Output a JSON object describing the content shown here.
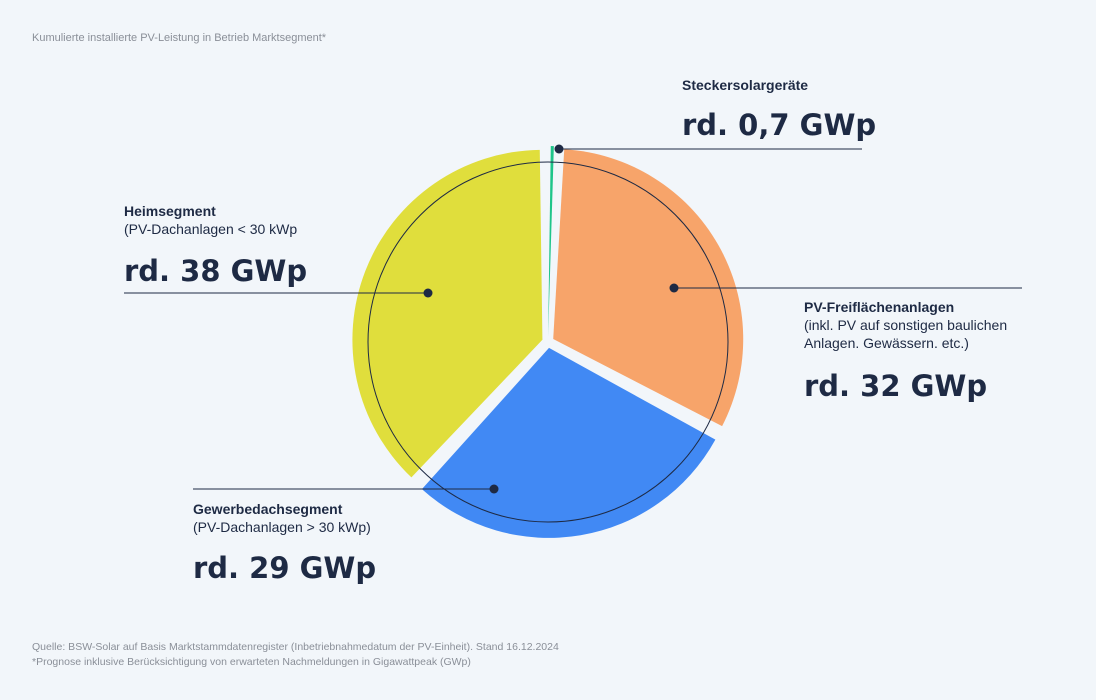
{
  "subtitle": "Kumulierte installierte PV-Leistung in Betrieb Marktsegment*",
  "footer": {
    "source": "Quelle: BSW-Solar auf Basis Marktstammdatenregister (Inbetriebnahmedatum der PV-Einheit). Stand 16.12.2024",
    "note": "*Prognose inklusive Berücksichtigung von erwarteten Nachmeldungen in Gigawattpeak (GWp)"
  },
  "chart_data": {
    "type": "pie",
    "unit": "GWp",
    "slices": [
      {
        "key": "steckersolar",
        "title": "Steckersolargeräte",
        "subtitle": [],
        "value": 0.7,
        "value_label": "rd. 0,7 GWp",
        "color": "#1ec58a"
      },
      {
        "key": "freiflaeche",
        "title": "PV-Freiflächenanlagen",
        "subtitle": [
          "(inkl. PV auf sonstigen baulichen",
          "Anlagen. Gewässern. etc.)"
        ],
        "value": 32,
        "value_label": "rd. 32 GWp",
        "color": "#f7a46a"
      },
      {
        "key": "gewerbe",
        "title": "Gewerbedachsegment",
        "subtitle": [
          "(PV-Dachanlagen > 30 kWp)"
        ],
        "value": 29,
        "value_label": "rd. 29 GWp",
        "color": "#4189f4"
      },
      {
        "key": "heim",
        "title": "Heimsegment",
        "subtitle": [
          "(PV-Dachanlagen < 30 kWp"
        ],
        "value": 38,
        "value_label": "rd. 38 GWp",
        "color": "#e0de3c"
      }
    ]
  }
}
